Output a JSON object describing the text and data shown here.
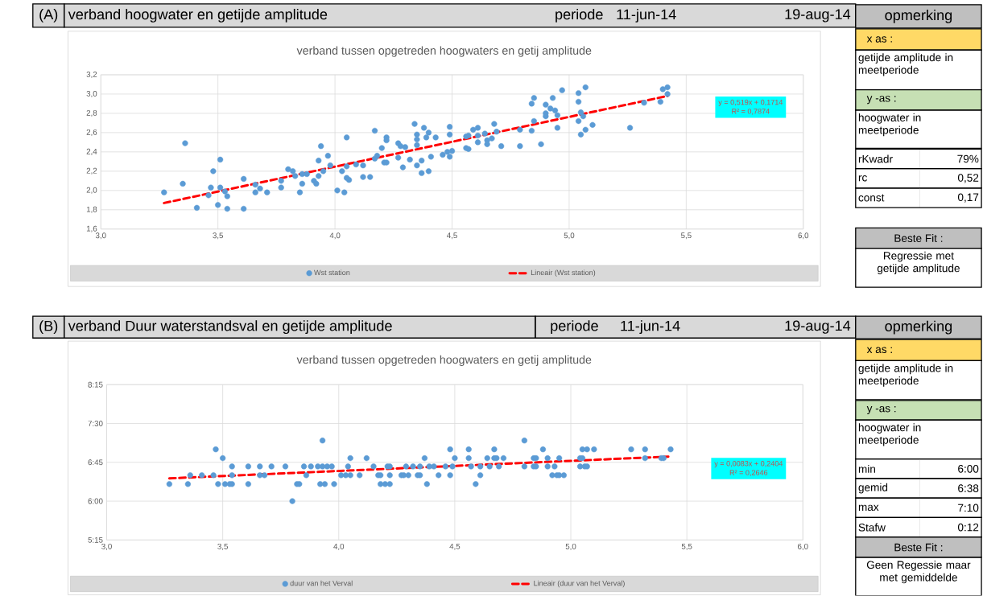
{
  "chart_data": [
    {
      "type": "scatter",
      "title": "verband hoogwater en getijde amplitude",
      "subtitle": "verband tussen opgetreden hoogwaters en getij amplitude",
      "annotations": [
        "(A)",
        "periode",
        "11-jun-14",
        "19-aug-14",
        "y = 0,519x + 0,1714",
        "R² = 0,7874"
      ],
      "xlim": [
        3,
        6
      ],
      "ylim": [
        1.6,
        3.2
      ],
      "xticks": [
        {
          "value": 3,
          "label": "3,0"
        },
        {
          "value": 3.5,
          "label": "3,5"
        },
        {
          "value": 4,
          "label": "4,0"
        },
        {
          "value": 4.5,
          "label": "4,5"
        },
        {
          "value": 5,
          "label": "5,0"
        },
        {
          "value": 5.5,
          "label": "5,5"
        },
        {
          "value": 6,
          "label": "6,0"
        }
      ],
      "yticks": [
        {
          "value": 1.6,
          "label": "1,6"
        },
        {
          "value": 1.8,
          "label": "1,8"
        },
        {
          "value": 2,
          "label": "2,0"
        },
        {
          "value": 2.2,
          "label": "2,2"
        },
        {
          "value": 2.4,
          "label": "2,4"
        },
        {
          "value": 2.6,
          "label": "2,6"
        },
        {
          "value": 2.8,
          "label": "2,8"
        },
        {
          "value": 3,
          "label": "3,0"
        },
        {
          "value": 3.2,
          "label": "3,2"
        }
      ],
      "grid": true,
      "legend": "bottom",
      "series": [
        {
          "name": "Wst station",
          "marker": "circle",
          "color": "#5b9bd5",
          "x": [
            3.27,
            3.35,
            3.36,
            3.41,
            3.46,
            3.47,
            3.48,
            3.5,
            3.51,
            3.51,
            3.53,
            3.54,
            3.54,
            3.61,
            3.61,
            3.66,
            3.66,
            3.68,
            3.71,
            3.77,
            3.77,
            3.8,
            3.82,
            3.83,
            3.85,
            3.86,
            3.86,
            3.88,
            3.91,
            3.92,
            3.93,
            3.93,
            3.94,
            3.95,
            3.97,
            3.98,
            4.01,
            4.03,
            4.04,
            4.05,
            4.05,
            4.05,
            4.06,
            4.09,
            4.12,
            4.12,
            4.15,
            4.17,
            4.17,
            4.18,
            4.2,
            4.21,
            4.22,
            4.22,
            4.22,
            4.27,
            4.27,
            4.28,
            4.29,
            4.3,
            4.32,
            4.34,
            4.35,
            4.35,
            4.35,
            4.35,
            4.37,
            4.37,
            4.38,
            4.39,
            4.4,
            4.4,
            4.41,
            4.43,
            4.46,
            4.48,
            4.49,
            4.49,
            4.49,
            4.5,
            4.56,
            4.57,
            4.56,
            4.57,
            4.59,
            4.61,
            4.61,
            4.61,
            4.64,
            4.65,
            4.65,
            4.67,
            4.68,
            4.69,
            4.71,
            4.79,
            4.79,
            4.84,
            4.85,
            4.84,
            4.85,
            4.88,
            4.9,
            4.9,
            4.9,
            4.92,
            4.93,
            4.94,
            4.95,
            4.95,
            4.97,
            5.04,
            5.04,
            5.05,
            5.06,
            5.04,
            5.07,
            5.07,
            5.05,
            5.1,
            5.26,
            5.32,
            5.39,
            5.4,
            5.42,
            5.42
          ],
          "values": [
            1.98,
            2.07,
            2.49,
            1.82,
            1.95,
            2.03,
            2.2,
            1.85,
            2.32,
            2.03,
            1.99,
            1.94,
            1.81,
            2.12,
            1.81,
            2.06,
            1.98,
            2.02,
            1.98,
            2.1,
            2.03,
            2.22,
            2.2,
            2.15,
            1.98,
            2.17,
            2.07,
            2.17,
            2.1,
            2.07,
            2.31,
            2.15,
            2.46,
            2.2,
            2.36,
            2.26,
            2.0,
            2.2,
            1.98,
            2.55,
            2.25,
            2.13,
            2.11,
            2.27,
            2.26,
            2.14,
            2.14,
            2.62,
            2.33,
            2.36,
            2.44,
            2.29,
            2.55,
            2.52,
            2.29,
            2.49,
            2.34,
            2.46,
            2.24,
            2.45,
            2.32,
            2.69,
            2.58,
            2.53,
            2.47,
            2.26,
            2.31,
            2.18,
            2.65,
            2.55,
            2.6,
            2.2,
            2.35,
            2.55,
            2.37,
            2.4,
            2.66,
            2.58,
            2.35,
            2.41,
            2.56,
            2.57,
            2.44,
            2.43,
            2.63,
            2.65,
            2.5,
            2.57,
            2.59,
            2.52,
            2.48,
            2.54,
            2.69,
            2.61,
            2.46,
            2.63,
            2.46,
            2.9,
            2.96,
            2.62,
            2.72,
            2.48,
            2.89,
            2.8,
            2.77,
            2.85,
            2.96,
            2.83,
            2.78,
            2.65,
            3.04,
            3.01,
            2.92,
            2.81,
            2.77,
            2.72,
            3.07,
            2.63,
            2.58,
            2.68,
            2.65,
            2.91,
            2.92,
            3.05,
            3.07,
            3.0
          ]
        },
        {
          "name": "Lineair (Wst station)",
          "type": "line",
          "marker": "none",
          "color": "#ff0000",
          "line_style": "dashed",
          "x": [
            3.27,
            5.42
          ],
          "values": [
            1.87,
            2.98
          ]
        }
      ]
    },
    {
      "type": "other",
      "annotations": [
        "opmerking",
        "x as :",
        "getijde amplitude in meetperiode",
        "y -as :",
        "hoogwater in meetperiode",
        "rKwadr",
        "79%",
        "rc",
        "0,52",
        "const",
        "0,17",
        "Beste Fit :",
        "Regressie met getijde amplitude"
      ]
    },
    {
      "type": "scatter",
      "title": "verband Duur waterstandsval en getijde amplitude",
      "subtitle": "verband tussen opgetreden hoogwaters en getij amplitude",
      "annotations": [
        "(B)",
        "periode",
        "11-jun-14",
        "19-aug-14",
        "y = 0,0083x + 0,2404",
        "R² = 0,2646"
      ],
      "xlim": [
        3,
        6
      ],
      "ylim": [
        5.25,
        8.25
      ],
      "xticks": [
        {
          "value": 3,
          "label": "3,0"
        },
        {
          "value": 3.5,
          "label": "3,5"
        },
        {
          "value": 4,
          "label": "4,0"
        },
        {
          "value": 4.5,
          "label": "4,5"
        },
        {
          "value": 5,
          "label": "5,0"
        },
        {
          "value": 5.5,
          "label": "5,5"
        },
        {
          "value": 6,
          "label": "6,0"
        }
      ],
      "yticks": [
        {
          "value": 5.25,
          "label": "5:15"
        },
        {
          "value": 6,
          "label": "6:00"
        },
        {
          "value": 6.75,
          "label": "6:45"
        },
        {
          "value": 7.5,
          "label": "7:30"
        },
        {
          "value": 8.25,
          "label": "8:15"
        }
      ],
      "grid": true,
      "legend": "bottom",
      "series": [
        {
          "name": "duur van het Verval",
          "marker": "circle",
          "color": "#5b9bd5",
          "x": [
            3.27,
            3.35,
            3.36,
            3.41,
            3.46,
            3.47,
            3.48,
            3.5,
            3.51,
            3.53,
            3.54,
            3.54,
            3.54,
            3.61,
            3.61,
            3.66,
            3.66,
            3.68,
            3.71,
            3.77,
            3.8,
            3.82,
            3.83,
            3.85,
            3.86,
            3.88,
            3.91,
            3.92,
            3.93,
            3.93,
            3.94,
            3.95,
            3.97,
            3.98,
            4.01,
            4.03,
            4.04,
            4.05,
            4.05,
            4.09,
            4.12,
            4.15,
            4.17,
            4.18,
            4.18,
            4.2,
            4.21,
            4.22,
            4.22,
            4.22,
            4.27,
            4.28,
            4.29,
            4.3,
            4.32,
            4.34,
            4.35,
            4.35,
            4.37,
            4.38,
            4.39,
            4.41,
            4.43,
            4.46,
            4.48,
            4.48,
            4.49,
            4.5,
            4.56,
            4.56,
            4.57,
            4.59,
            4.61,
            4.61,
            4.64,
            4.65,
            4.67,
            4.67,
            4.68,
            4.69,
            4.71,
            4.8,
            4.8,
            4.84,
            4.85,
            4.84,
            4.85,
            4.88,
            4.9,
            4.9,
            4.92,
            4.93,
            4.94,
            4.95,
            4.97,
            4.95,
            5.04,
            5.05,
            5.04,
            5.06,
            5.07,
            5.05,
            5.07,
            5.1,
            5.26,
            5.32,
            5.32,
            5.39,
            5.4,
            5.43
          ],
          "values": [
            6.33,
            6.33,
            6.5,
            6.5,
            6.5,
            7.0,
            6.33,
            6.83,
            6.33,
            6.33,
            6.33,
            6.67,
            6.5,
            6.67,
            6.33,
            6.67,
            6.5,
            6.5,
            6.67,
            6.67,
            6.0,
            6.33,
            6.33,
            6.67,
            6.5,
            6.67,
            6.67,
            6.33,
            7.17,
            6.67,
            6.33,
            6.67,
            6.67,
            6.33,
            6.5,
            6.5,
            6.67,
            6.83,
            6.5,
            6.5,
            6.83,
            6.67,
            6.5,
            6.33,
            6.5,
            6.33,
            6.67,
            6.5,
            6.33,
            6.67,
            6.5,
            6.5,
            6.67,
            6.5,
            6.67,
            6.5,
            6.67,
            6.5,
            6.83,
            6.33,
            6.67,
            6.67,
            6.5,
            6.67,
            7.0,
            6.5,
            6.67,
            6.83,
            7.0,
            6.83,
            6.67,
            6.33,
            6.67,
            6.5,
            6.83,
            6.67,
            7.0,
            6.83,
            6.83,
            6.67,
            6.83,
            7.17,
            6.67,
            6.83,
            6.83,
            6.67,
            6.67,
            7.0,
            6.83,
            6.67,
            6.5,
            6.67,
            6.5,
            6.5,
            6.5,
            6.83,
            6.83,
            6.83,
            6.67,
            6.67,
            6.67,
            7.0,
            7.0,
            7.0,
            7.0,
            7.0,
            6.83,
            6.83,
            6.83,
            7.0
          ]
        },
        {
          "name": "Lineair (duur van het Verval)",
          "type": "line",
          "marker": "none",
          "color": "#ff0000",
          "line_style": "dashed",
          "x": [
            3.27,
            5.42
          ],
          "values": [
            6.44,
            6.86
          ]
        }
      ]
    },
    {
      "type": "other",
      "annotations": [
        "opmerking",
        "x as :",
        "getijde amplitude in meetperiode",
        "y -as :",
        "hoogwater in meetperiode",
        "min",
        "6:00",
        "gemid",
        "6:38",
        "max",
        "7:10",
        "Stafw",
        "0:12",
        "Beste Fit :",
        "Geen Regessie maar met gemiddelde"
      ]
    }
  ]
}
